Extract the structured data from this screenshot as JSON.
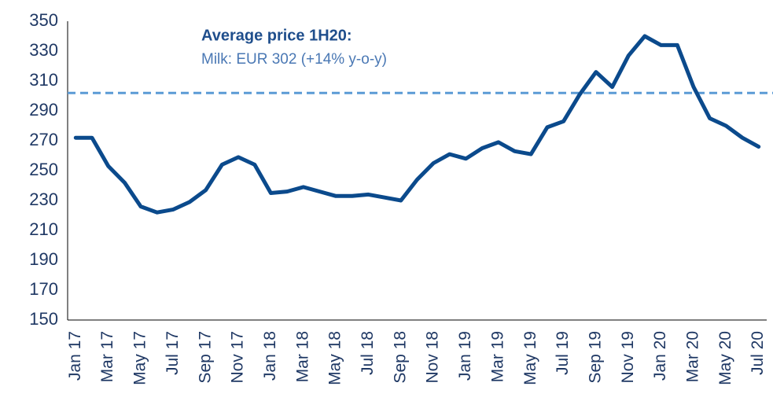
{
  "chart_data": {
    "type": "line",
    "categories": [
      "Jan 17",
      null,
      "Mar 17",
      null,
      "May 17",
      null,
      "Jul 17",
      null,
      "Sep 17",
      null,
      "Nov 17",
      null,
      "Jan 18",
      null,
      "Mar 18",
      null,
      "May 18",
      null,
      "Jul 18",
      null,
      "Sep 18",
      null,
      "Nov 18",
      null,
      "Jan 19",
      null,
      "Mar 19",
      null,
      "May 19",
      null,
      "Jul 19",
      null,
      "Sep 19",
      null,
      "Nov 19",
      null,
      "Jan 20",
      null,
      "Mar 20",
      null,
      "May 20",
      null,
      "Jul 20"
    ],
    "series": [
      {
        "name": "Milk",
        "color": "#0b4a8c",
        "values": [
          272,
          272,
          253,
          242,
          226,
          222,
          224,
          229,
          237,
          254,
          259,
          254,
          235,
          236,
          239,
          236,
          233,
          233,
          234,
          232,
          230,
          244,
          255,
          261,
          258,
          265,
          269,
          263,
          261,
          279,
          283,
          301,
          316,
          306,
          327,
          340,
          334,
          334,
          306,
          285,
          280,
          272,
          266
        ]
      }
    ],
    "ylim": [
      150,
      350
    ],
    "yticks": [
      150,
      170,
      190,
      210,
      230,
      250,
      270,
      290,
      310,
      330,
      350
    ],
    "grid": false,
    "reference_line": {
      "value": 302,
      "color": "#5b9bd5",
      "dashed": true
    },
    "annotation": {
      "title": "Average price 1H20:",
      "text": "Milk: EUR 302 (+14% y-o-y)"
    }
  }
}
